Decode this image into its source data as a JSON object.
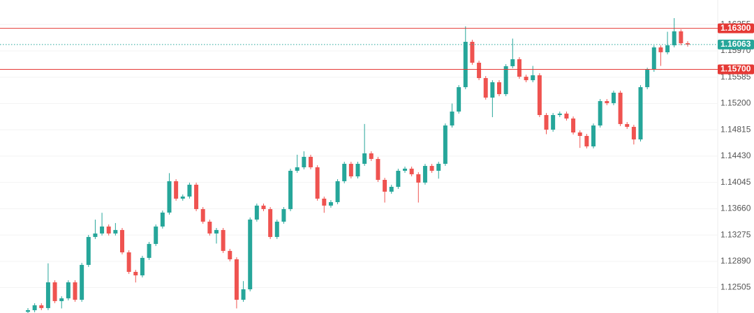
{
  "chart_data": {
    "type": "candlestick",
    "up_color": "#26a69a",
    "down_color": "#ef5350",
    "grid": true,
    "ylim": [
      1.12133,
      1.16715
    ],
    "yticks": [
      {
        "value": 1.12505,
        "label": "1.12505"
      },
      {
        "value": 1.1289,
        "label": "1.12890"
      },
      {
        "value": 1.13275,
        "label": "1.13275"
      },
      {
        "value": 1.1366,
        "label": "1.13660"
      },
      {
        "value": 1.14045,
        "label": "1.14045"
      },
      {
        "value": 1.1443,
        "label": "1.14430"
      },
      {
        "value": 1.14815,
        "label": "1.14815"
      },
      {
        "value": 1.152,
        "label": "1.15200"
      },
      {
        "value": 1.15585,
        "label": "1.15585"
      },
      {
        "value": 1.1597,
        "label": "1.15970"
      },
      {
        "value": 1.16355,
        "label": "1.16355"
      }
    ],
    "price_lines": [
      {
        "value": 1.163,
        "label": "1.16300",
        "color": "#e53935",
        "style": "solid"
      },
      {
        "value": 1.157,
        "label": "1.15700",
        "color": "#e53935",
        "style": "solid"
      },
      {
        "value": 1.16063,
        "label": "1.16063",
        "color": "#26a69a",
        "style": "dotted"
      }
    ],
    "open": [
      1.1215,
      1.12174,
      1.12246,
      1.12205,
      1.12582,
      1.12307,
      1.12348,
      1.12582,
      1.12327,
      1.12837,
      1.13246,
      1.13297,
      1.13399,
      1.13297,
      1.13348,
      1.13021,
      1.12735,
      1.12684,
      1.1294,
      1.13144,
      1.13399,
      1.13603,
      1.14062,
      1.13807,
      1.13838,
      1.14011,
      1.13654,
      1.1347,
      1.13297,
      1.13348,
      1.13042,
      1.12919,
      1.12327,
      1.1248,
      1.13501,
      1.13705,
      1.13654,
      1.13246,
      1.1347,
      1.13654,
      1.14215,
      1.14266,
      1.14419,
      1.14266,
      1.13807,
      1.13705,
      1.13756,
      1.14062,
      1.14317,
      1.14133,
      1.14317,
      1.1447,
      1.14388,
      1.14082,
      1.13909,
      1.1398,
      1.14215,
      1.14246,
      1.14164,
      1.14042,
      1.14286,
      1.14215,
      1.14317,
      1.14878,
      1.15082,
      1.15439,
      1.16103,
      1.15797,
      1.15572,
      1.15286,
      1.15511,
      1.15337,
      1.15746,
      1.15848,
      1.15592,
      1.15541,
      1.15613,
      1.15031,
      1.14817,
      1.15031,
      1.15052,
      1.1498,
      1.14776,
      1.14725,
      1.14572,
      1.14878,
      1.15235,
      1.15205,
      1.15358,
      1.14899,
      1.14858,
      1.14674,
      1.15439,
      1.15694,
      1.16021,
      1.1595,
      1.16052,
      1.16256,
      1.16082
    ],
    "high": [
      1.12204,
      1.12276,
      1.12276,
      1.1286,
      1.12612,
      1.12378,
      1.12612,
      1.12612,
      1.12867,
      1.13276,
      1.135,
      1.136,
      1.13429,
      1.1345,
      1.13378,
      1.13051,
      1.12765,
      1.1297,
      1.13174,
      1.13429,
      1.13633,
      1.1418,
      1.14092,
      1.13868,
      1.14041,
      1.14041,
      1.13684,
      1.135,
      1.13378,
      1.13378,
      1.13072,
      1.12949,
      1.126,
      1.13531,
      1.13735,
      1.13735,
      1.13684,
      1.135,
      1.13684,
      1.14245,
      1.1445,
      1.145,
      1.14449,
      1.14296,
      1.13837,
      1.13786,
      1.14092,
      1.14347,
      1.14347,
      1.14347,
      1.149,
      1.145,
      1.14418,
      1.14112,
      1.1401,
      1.14245,
      1.14276,
      1.14276,
      1.14194,
      1.14316,
      1.14316,
      1.14347,
      1.14908,
      1.152,
      1.15469,
      1.1633,
      1.16133,
      1.15827,
      1.15602,
      1.15541,
      1.15541,
      1.15776,
      1.1615,
      1.15878,
      1.15622,
      1.1575,
      1.15643,
      1.15061,
      1.15061,
      1.15082,
      1.15082,
      1.1501,
      1.14806,
      1.14755,
      1.14908,
      1.15265,
      1.15265,
      1.15388,
      1.15388,
      1.14929,
      1.14888,
      1.15469,
      1.15724,
      1.16051,
      1.16051,
      1.1625,
      1.1645,
      1.16286,
      1.16112
    ],
    "low": [
      1.1212,
      1.12144,
      1.12175,
      1.12175,
      1.12277,
      1.122,
      1.12318,
      1.12297,
      1.12297,
      1.12807,
      1.13216,
      1.13267,
      1.13267,
      1.13267,
      1.12991,
      1.12705,
      1.1258,
      1.12654,
      1.1291,
      1.13114,
      1.13369,
      1.13573,
      1.13777,
      1.13777,
      1.13808,
      1.13624,
      1.1344,
      1.13267,
      1.1315,
      1.13012,
      1.12889,
      1.122,
      1.12297,
      1.1245,
      1.13471,
      1.13624,
      1.13216,
      1.13216,
      1.1344,
      1.13624,
      1.14185,
      1.14236,
      1.14236,
      1.13777,
      1.136,
      1.13675,
      1.13726,
      1.14032,
      1.14103,
      1.14103,
      1.14287,
      1.14358,
      1.14052,
      1.1375,
      1.13879,
      1.1395,
      1.14185,
      1.14134,
      1.1375,
      1.14012,
      1.14185,
      1.141,
      1.14287,
      1.14848,
      1.15052,
      1.15409,
      1.15767,
      1.15542,
      1.15256,
      1.15,
      1.15307,
      1.15307,
      1.15716,
      1.15562,
      1.15511,
      1.15511,
      1.15001,
      1.1475,
      1.14787,
      1.15001,
      1.1495,
      1.14746,
      1.1455,
      1.14542,
      1.14542,
      1.14848,
      1.15175,
      1.15175,
      1.14869,
      1.14828,
      1.146,
      1.14644,
      1.15409,
      1.15664,
      1.1575,
      1.1592,
      1.16022,
      1.16052,
      1.16033
    ],
    "close": [
      1.12174,
      1.12246,
      1.12205,
      1.12582,
      1.12307,
      1.12348,
      1.12582,
      1.12327,
      1.12837,
      1.13246,
      1.13297,
      1.13399,
      1.13297,
      1.13348,
      1.13021,
      1.12735,
      1.12684,
      1.1294,
      1.13144,
      1.13399,
      1.13603,
      1.14062,
      1.13807,
      1.13838,
      1.14011,
      1.13654,
      1.1347,
      1.13297,
      1.13348,
      1.13042,
      1.12919,
      1.12327,
      1.1248,
      1.13501,
      1.13705,
      1.13654,
      1.13246,
      1.1347,
      1.13654,
      1.14215,
      1.14266,
      1.14419,
      1.14266,
      1.13807,
      1.13705,
      1.13756,
      1.14062,
      1.14317,
      1.14133,
      1.14317,
      1.1447,
      1.14388,
      1.14082,
      1.13909,
      1.1398,
      1.14215,
      1.14246,
      1.14164,
      1.14042,
      1.14286,
      1.14215,
      1.14317,
      1.14878,
      1.15082,
      1.15439,
      1.16103,
      1.15797,
      1.15572,
      1.15286,
      1.15511,
      1.15337,
      1.15746,
      1.15848,
      1.15592,
      1.15541,
      1.15613,
      1.15031,
      1.14817,
      1.15031,
      1.15052,
      1.1498,
      1.14776,
      1.14725,
      1.14572,
      1.14878,
      1.15235,
      1.15205,
      1.15358,
      1.14899,
      1.14858,
      1.14674,
      1.15439,
      1.15694,
      1.16021,
      1.1595,
      1.16052,
      1.16256,
      1.16082,
      1.16063
    ]
  }
}
